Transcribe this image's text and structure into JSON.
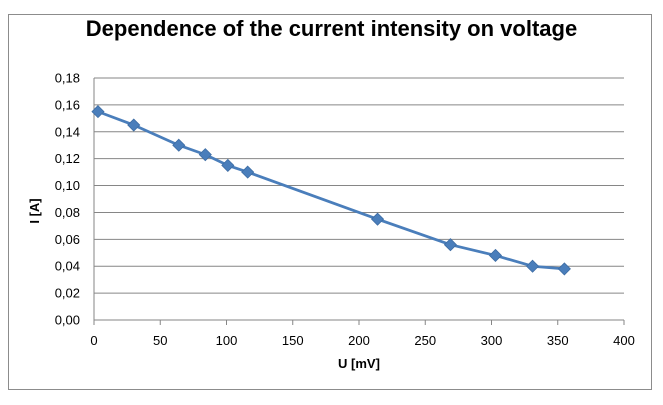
{
  "chart_data": {
    "type": "scatter",
    "title": "Dependence of the current intensity on voltage",
    "xlabel": "U [mV]",
    "ylabel": "I [A]",
    "xlim": [
      0,
      400
    ],
    "ylim": [
      0,
      0.18
    ],
    "x_ticks": [
      "0",
      "50",
      "100",
      "150",
      "200",
      "250",
      "300",
      "350",
      "400"
    ],
    "y_ticks": [
      "0,00",
      "0,02",
      "0,04",
      "0,06",
      "0,08",
      "0,10",
      "0,12",
      "0,14",
      "0,16",
      "0,18"
    ],
    "grid": true,
    "legend": false,
    "series": [
      {
        "color": "#4a7ebb",
        "marker": "diamond",
        "line": true,
        "x": [
          3,
          30,
          64,
          84,
          101,
          116,
          214,
          269,
          303,
          331,
          355
        ],
        "y": [
          0.155,
          0.145,
          0.13,
          0.123,
          0.115,
          0.11,
          0.075,
          0.056,
          0.048,
          0.04,
          0.038
        ]
      }
    ]
  }
}
